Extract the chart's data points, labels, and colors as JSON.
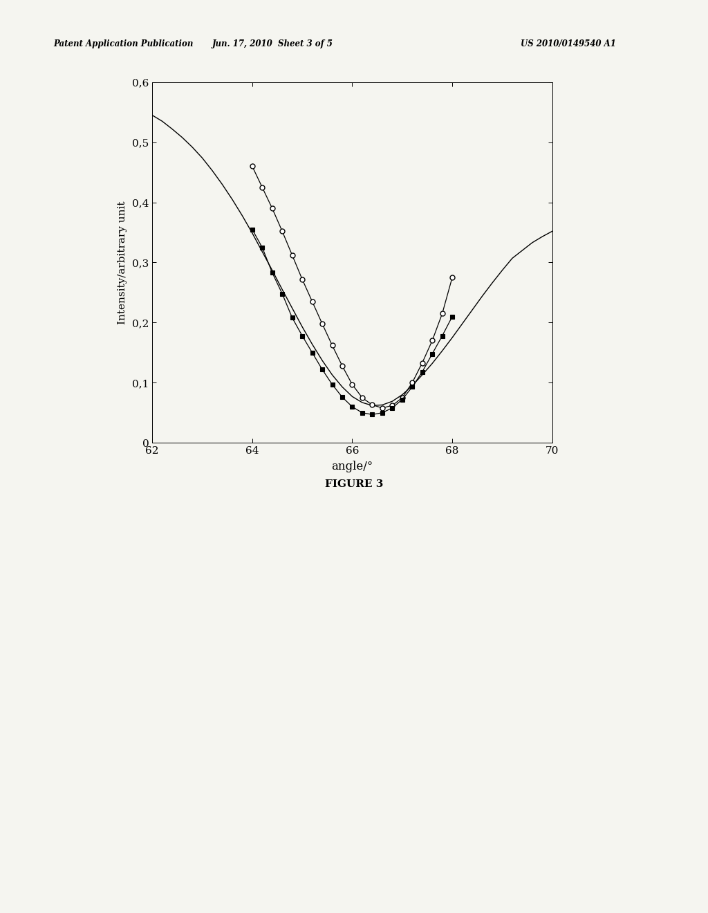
{
  "header_left": "Patent Application Publication",
  "header_mid": "Jun. 17, 2010  Sheet 3 of 5",
  "header_right": "US 2010/0149540 A1",
  "figure_label": "FIGURE 3",
  "xlabel": "angle/°",
  "ylabel": "Intensity/arbitrary unit",
  "xlim": [
    62,
    70
  ],
  "ylim": [
    0,
    0.6
  ],
  "xticks": [
    62,
    64,
    66,
    68,
    70
  ],
  "yticks": [
    0,
    0.1,
    0.2,
    0.3,
    0.4,
    0.5,
    0.6
  ],
  "yticklabels": [
    "0",
    "0,1",
    "0,2",
    "0,3",
    "0,4",
    "0,5",
    "0,6"
  ],
  "smooth_curve_x": [
    62.0,
    62.2,
    62.4,
    62.6,
    62.8,
    63.0,
    63.2,
    63.4,
    63.6,
    63.8,
    64.0,
    64.2,
    64.4,
    64.6,
    64.8,
    65.0,
    65.2,
    65.4,
    65.6,
    65.8,
    66.0,
    66.2,
    66.4,
    66.6,
    66.8,
    67.0,
    67.2,
    67.4,
    67.6,
    67.8,
    68.0,
    68.2,
    68.4,
    68.6,
    68.8,
    69.0,
    69.2,
    69.4,
    69.6,
    69.8,
    70.0
  ],
  "smooth_curve_y": [
    0.545,
    0.535,
    0.522,
    0.508,
    0.492,
    0.474,
    0.453,
    0.43,
    0.405,
    0.378,
    0.349,
    0.318,
    0.287,
    0.255,
    0.224,
    0.193,
    0.164,
    0.137,
    0.113,
    0.093,
    0.077,
    0.067,
    0.062,
    0.063,
    0.069,
    0.08,
    0.095,
    0.113,
    0.132,
    0.153,
    0.175,
    0.198,
    0.221,
    0.244,
    0.266,
    0.287,
    0.307,
    0.32,
    0.333,
    0.343,
    0.352
  ],
  "open_circles_x": [
    64.0,
    64.2,
    64.4,
    64.6,
    64.8,
    65.0,
    65.2,
    65.4,
    65.6,
    65.8,
    66.0,
    66.2,
    66.4,
    66.6,
    66.8,
    67.0,
    67.2,
    67.4,
    67.6,
    67.8,
    68.0
  ],
  "open_circles_y": [
    0.46,
    0.425,
    0.39,
    0.352,
    0.312,
    0.272,
    0.235,
    0.198,
    0.162,
    0.128,
    0.097,
    0.075,
    0.063,
    0.058,
    0.062,
    0.075,
    0.1,
    0.133,
    0.17,
    0.215,
    0.275
  ],
  "filled_squares_x": [
    64.0,
    64.2,
    64.4,
    64.6,
    64.8,
    65.0,
    65.2,
    65.4,
    65.6,
    65.8,
    66.0,
    66.2,
    66.4,
    66.6,
    66.8,
    67.0,
    67.2,
    67.4,
    67.6,
    67.8,
    68.0
  ],
  "filled_squares_y": [
    0.355,
    0.325,
    0.283,
    0.248,
    0.208,
    0.178,
    0.15,
    0.122,
    0.097,
    0.076,
    0.06,
    0.05,
    0.047,
    0.05,
    0.058,
    0.072,
    0.093,
    0.118,
    0.148,
    0.178,
    0.21
  ],
  "curve_color": "#000000",
  "open_circle_color": "#000000",
  "filled_square_color": "#000000",
  "background_color": "#f5f5f0",
  "axis_color": "#000000"
}
